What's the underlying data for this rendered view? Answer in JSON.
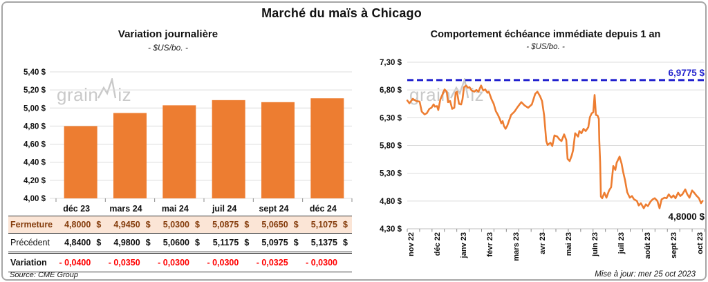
{
  "page": {
    "title": "Marché du maïs à Chicago",
    "source_note": "Source: CME Group",
    "update_note": "Mise à jour: mer 25 oct 2023",
    "watermark_left": "grain",
    "watermark_right": "iz"
  },
  "colors": {
    "orange": "#ED7D31",
    "blue": "#2121CE",
    "red": "#FF0000",
    "brown": "#843C0C",
    "peach_bg": "#FBE5D6",
    "grid": "#DCDCDC",
    "axis": "#BFBFBF",
    "tick": "#8a8a8a",
    "text": "#111111",
    "watermark": "#c9c9c9"
  },
  "table": {
    "col_headers": [
      "déc 23",
      "mars 24",
      "mai 24",
      "juil 24",
      "sept 24",
      "déc 24"
    ],
    "rows": [
      {
        "label": "Fermeture",
        "style": "fermeture",
        "values": [
          "4,8000",
          "4,9450",
          "5,0300",
          "5,0875",
          "5,0650",
          "5,1075"
        ],
        "currency": [
          "$",
          "$",
          "$",
          "$",
          "$",
          "$"
        ]
      },
      {
        "label": "Précédent",
        "style": "precedent",
        "values": [
          "4,8400",
          "4,9800",
          "5,0600",
          "5,1175",
          "5,0975",
          "5,1375"
        ],
        "currency": [
          "$",
          "$",
          "$",
          "$",
          "$",
          "$"
        ]
      },
      {
        "label": "Variation",
        "style": "variation",
        "values": [
          "- 0,0400",
          "- 0,0350",
          "- 0,0300",
          "- 0,0300",
          "- 0,0325",
          "- 0,0300"
        ],
        "currency": [
          "",
          "",
          "",
          "",
          "",
          ""
        ]
      }
    ]
  },
  "chart_data": [
    {
      "type": "bar",
      "title": "Variation journalière",
      "subtitle": "- $US/bo. -",
      "categories": [
        "déc 23",
        "mars 24",
        "mai 24",
        "juil 24",
        "sept 24",
        "déc 24"
      ],
      "values": [
        4.8,
        4.945,
        5.03,
        5.0875,
        5.065,
        5.1075
      ],
      "ylim": [
        4.0,
        5.4
      ],
      "ytick_step": 0.2,
      "ytick_format": "0,00 $",
      "grid": true,
      "bar_color": "#ED7D31",
      "legend": "none"
    },
    {
      "type": "line",
      "title": "Comportement échéance immédiate depuis 1 an",
      "subtitle": "- $US/bo. -",
      "x_tick_labels": [
        "nov 22",
        "déc 22",
        "janv 23",
        "févr 23",
        "mars 23",
        "avr 23",
        "mai 23",
        "juin 23",
        "juil 23",
        "août 23",
        "sept 23",
        "oct 23"
      ],
      "x_domain": [
        -0.13,
        11.18
      ],
      "ylim": [
        4.3,
        7.3
      ],
      "ytick_step": 0.5,
      "grid": true,
      "line_color": "#ED7D31",
      "target_line": {
        "value": 6.9775,
        "label": "6,9775 $",
        "color": "#2121CE",
        "style": "dashed"
      },
      "last_label": "4,8000 $",
      "points": [
        [
          -0.13,
          6.61
        ],
        [
          -0.05,
          6.56
        ],
        [
          0.08,
          6.64
        ],
        [
          0.21,
          6.6
        ],
        [
          0.34,
          6.59
        ],
        [
          0.42,
          6.41
        ],
        [
          0.53,
          6.36
        ],
        [
          0.61,
          6.38
        ],
        [
          0.71,
          6.46
        ],
        [
          0.79,
          6.48
        ],
        [
          0.87,
          6.54
        ],
        [
          0.92,
          6.5
        ],
        [
          1.0,
          6.51
        ],
        [
          1.05,
          6.44
        ],
        [
          1.13,
          6.63
        ],
        [
          1.24,
          6.75
        ],
        [
          1.29,
          6.81
        ],
        [
          1.37,
          6.77
        ],
        [
          1.42,
          6.58
        ],
        [
          1.5,
          6.6
        ],
        [
          1.58,
          6.46
        ],
        [
          1.66,
          6.48
        ],
        [
          1.71,
          6.75
        ],
        [
          1.76,
          6.77
        ],
        [
          1.84,
          6.55
        ],
        [
          1.92,
          6.54
        ],
        [
          1.97,
          6.63
        ],
        [
          2.03,
          6.85
        ],
        [
          2.11,
          6.88
        ],
        [
          2.18,
          6.84
        ],
        [
          2.24,
          6.85
        ],
        [
          2.32,
          6.79
        ],
        [
          2.42,
          6.77
        ],
        [
          2.5,
          6.8
        ],
        [
          2.58,
          6.77
        ],
        [
          2.68,
          6.88
        ],
        [
          2.76,
          6.79
        ],
        [
          2.84,
          6.81
        ],
        [
          2.92,
          6.75
        ],
        [
          2.97,
          6.77
        ],
        [
          3.08,
          6.63
        ],
        [
          3.16,
          6.55
        ],
        [
          3.24,
          6.42
        ],
        [
          3.32,
          6.35
        ],
        [
          3.39,
          6.28
        ],
        [
          3.45,
          6.2
        ],
        [
          3.5,
          6.24
        ],
        [
          3.55,
          6.15
        ],
        [
          3.61,
          6.1
        ],
        [
          3.68,
          6.16
        ],
        [
          3.82,
          6.35
        ],
        [
          3.95,
          6.41
        ],
        [
          4.08,
          6.5
        ],
        [
          4.21,
          6.58
        ],
        [
          4.34,
          6.52
        ],
        [
          4.47,
          6.48
        ],
        [
          4.61,
          6.54
        ],
        [
          4.74,
          6.73
        ],
        [
          4.82,
          6.77
        ],
        [
          4.92,
          6.69
        ],
        [
          5.0,
          6.6
        ],
        [
          5.08,
          6.34
        ],
        [
          5.16,
          5.88
        ],
        [
          5.21,
          5.81
        ],
        [
          5.32,
          5.85
        ],
        [
          5.39,
          5.79
        ],
        [
          5.47,
          5.98
        ],
        [
          5.58,
          5.96
        ],
        [
          5.66,
          5.91
        ],
        [
          5.74,
          5.88
        ],
        [
          5.84,
          6.0
        ],
        [
          5.92,
          5.9
        ],
        [
          5.97,
          5.56
        ],
        [
          6.05,
          5.52
        ],
        [
          6.13,
          5.62
        ],
        [
          6.18,
          5.71
        ],
        [
          6.26,
          6.02
        ],
        [
          6.37,
          5.96
        ],
        [
          6.42,
          6.06
        ],
        [
          6.5,
          6.02
        ],
        [
          6.58,
          6.1
        ],
        [
          6.66,
          6.06
        ],
        [
          6.76,
          6.13
        ],
        [
          6.82,
          6.31
        ],
        [
          6.89,
          6.38
        ],
        [
          6.95,
          6.4
        ],
        [
          7.0,
          6.71
        ],
        [
          7.05,
          6.35
        ],
        [
          7.11,
          6.34
        ],
        [
          7.16,
          6.28
        ],
        [
          7.18,
          5.88
        ],
        [
          7.21,
          5.5
        ],
        [
          7.24,
          4.88
        ],
        [
          7.29,
          4.85
        ],
        [
          7.37,
          4.95
        ],
        [
          7.45,
          4.86
        ],
        [
          7.55,
          4.99
        ],
        [
          7.63,
          5.05
        ],
        [
          7.71,
          5.43
        ],
        [
          7.79,
          5.36
        ],
        [
          7.84,
          5.49
        ],
        [
          7.95,
          5.6
        ],
        [
          8.03,
          5.47
        ],
        [
          8.08,
          5.34
        ],
        [
          8.16,
          5.17
        ],
        [
          8.24,
          4.96
        ],
        [
          8.34,
          4.86
        ],
        [
          8.42,
          4.89
        ],
        [
          8.5,
          4.83
        ],
        [
          8.61,
          4.8
        ],
        [
          8.68,
          4.72
        ],
        [
          8.76,
          4.76
        ],
        [
          8.87,
          4.67
        ],
        [
          8.95,
          4.74
        ],
        [
          9.03,
          4.71
        ],
        [
          9.13,
          4.79
        ],
        [
          9.21,
          4.83
        ],
        [
          9.29,
          4.85
        ],
        [
          9.39,
          4.8
        ],
        [
          9.47,
          4.67
        ],
        [
          9.55,
          4.83
        ],
        [
          9.66,
          4.86
        ],
        [
          9.74,
          4.85
        ],
        [
          9.82,
          4.92
        ],
        [
          9.92,
          4.86
        ],
        [
          10.0,
          4.9
        ],
        [
          10.08,
          4.85
        ],
        [
          10.18,
          4.95
        ],
        [
          10.26,
          4.89
        ],
        [
          10.34,
          4.92
        ],
        [
          10.45,
          5.01
        ],
        [
          10.53,
          4.92
        ],
        [
          10.61,
          4.86
        ],
        [
          10.71,
          4.99
        ],
        [
          10.79,
          4.95
        ],
        [
          10.87,
          4.9
        ],
        [
          10.97,
          4.85
        ],
        [
          11.05,
          4.76
        ],
        [
          11.11,
          4.8
        ]
      ]
    }
  ]
}
